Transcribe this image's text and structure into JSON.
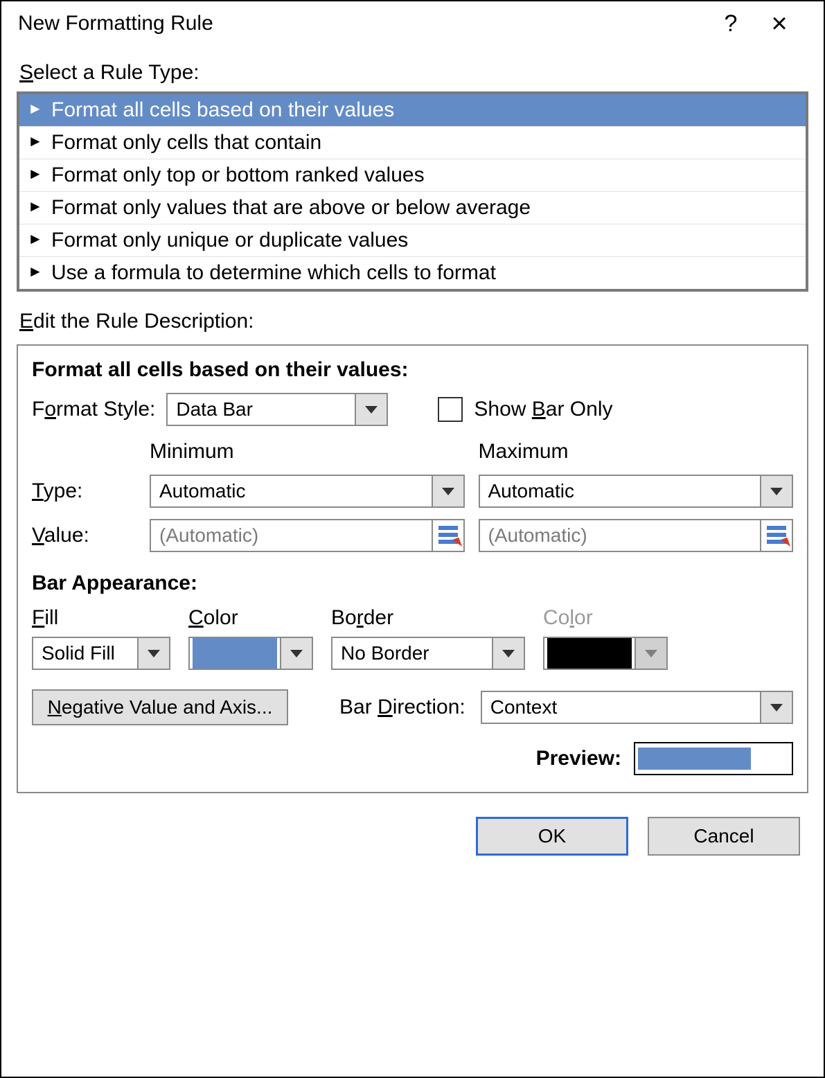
{
  "dialog": {
    "title": "New Formatting Rule",
    "help_symbol": "?",
    "close_symbol": "×"
  },
  "select_rule_label": "Select a Rule Type:",
  "rule_types": [
    "Format all cells based on their values",
    "Format only cells that contain",
    "Format only top or bottom ranked values",
    "Format only values that are above or below average",
    "Format only unique or duplicate values",
    "Use a formula to determine which cells to format"
  ],
  "selected_rule_index": 0,
  "edit_desc_label": "Edit the Rule Description:",
  "desc": {
    "heading": "Format all cells based on their values:",
    "format_style_label": "Format Style:",
    "format_style_value": "Data Bar",
    "show_bar_only_label": "Show Bar Only",
    "show_bar_only_checked": false,
    "minimum_label": "Minimum",
    "maximum_label": "Maximum",
    "type_label": "Type:",
    "value_label": "Value:",
    "min_type": "Automatic",
    "max_type": "Automatic",
    "min_value_placeholder": "(Automatic)",
    "max_value_placeholder": "(Automatic)",
    "bar_appearance_label": "Bar Appearance:",
    "fill_label": "Fill",
    "fill_color_label": "Color",
    "border_label": "Border",
    "border_color_label": "Color",
    "fill_value": "Solid Fill",
    "border_value": "No Border",
    "fill_color": "#638cc7",
    "border_color": "#000000",
    "border_color_disabled": true,
    "neg_axis_label": "Negative Value and Axis...",
    "bar_direction_label": "Bar Direction:",
    "bar_direction_value": "Context",
    "preview_label": "Preview:",
    "preview_bar_color": "#638cc7",
    "preview_bar_percent": 72
  },
  "footer": {
    "ok": "OK",
    "cancel": "Cancel"
  },
  "colors": {
    "selection_bg": "#638cc7",
    "border_gray": "#8a8a8a",
    "button_bg": "#e1e1e1",
    "primary_border": "#2e6bd6"
  }
}
